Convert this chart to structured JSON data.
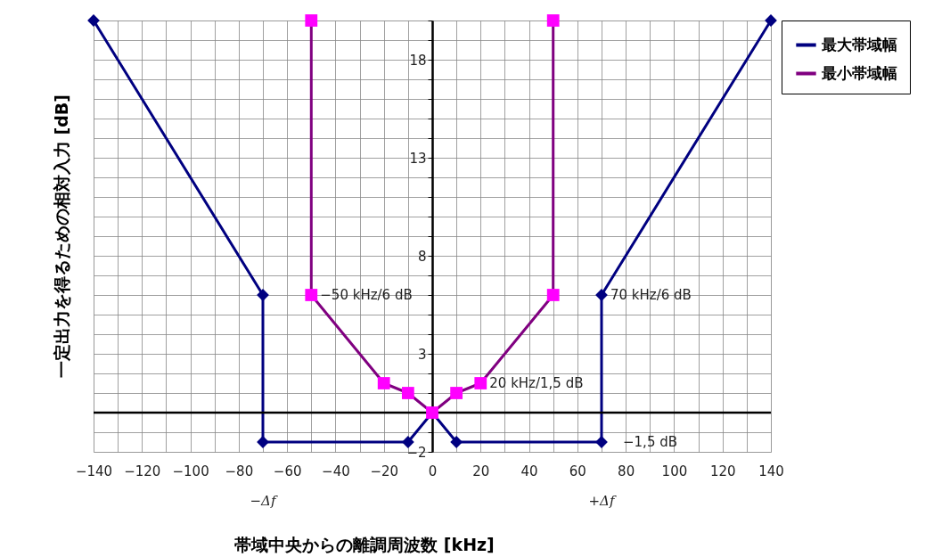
{
  "chart_data": {
    "type": "line",
    "xlabel": "帯域中央からの離調周波数 [kHz]",
    "ylabel": "一定出力を得るための相対入力 [dB]",
    "xlim": [
      -140,
      140
    ],
    "xticks": [
      -140,
      {
        "value": -130,
        "label": null
      },
      -120,
      {
        "value": -110,
        "label": null
      },
      -100,
      {
        "value": -90,
        "label": null
      },
      -80,
      {
        "value": -70,
        "label": null
      },
      -60,
      {
        "value": -50,
        "label": null
      },
      -40,
      {
        "value": -30,
        "label": null
      },
      -20,
      {
        "value": -10,
        "label": null
      },
      0,
      {
        "value": 10,
        "label": null
      },
      20,
      {
        "value": 30,
        "label": null
      },
      40,
      {
        "value": 50,
        "label": null
      },
      60,
      {
        "value": 70,
        "label": null
      },
      80,
      {
        "value": 90,
        "label": null
      },
      100,
      {
        "value": 110,
        "label": null
      },
      120,
      {
        "value": 130,
        "label": null
      },
      140
    ],
    "ylim": [
      -2,
      20
    ],
    "yticks": [
      -2,
      {
        "value": -1,
        "label": null
      },
      {
        "value": 0,
        "label": null
      },
      {
        "value": 1,
        "label": null
      },
      {
        "value": 2,
        "label": null
      },
      3,
      {
        "value": 4,
        "label": null
      },
      {
        "value": 5,
        "label": null
      },
      {
        "value": 6,
        "label": null
      },
      {
        "value": 7,
        "label": null
      },
      8,
      {
        "value": 9,
        "label": null
      },
      {
        "value": 10,
        "label": null
      },
      {
        "value": 11,
        "label": null
      },
      {
        "value": 12,
        "label": null
      },
      13,
      {
        "value": 14,
        "label": null
      },
      {
        "value": 15,
        "label": null
      },
      {
        "value": 16,
        "label": null
      },
      {
        "value": 17,
        "label": null
      },
      18,
      {
        "value": 19,
        "label": null
      },
      {
        "value": 20,
        "label": null
      }
    ],
    "grid": true,
    "legend": "right",
    "series": [
      {
        "name": "最大帯域幅",
        "color": "#000080",
        "marker": "diamond",
        "x": [
          -140,
          -70,
          -70,
          -10,
          0,
          10,
          70,
          70,
          140
        ],
        "values": [
          20,
          6,
          -1.5,
          -1.5,
          0,
          -1.5,
          -1.5,
          6,
          20
        ]
      },
      {
        "name": "最小帯域幅",
        "color": "#800080",
        "colors": [
          "#ff00ff",
          "#ff00ff",
          "#ff00ff",
          "#ff00ff",
          "#ff00ff",
          "#ff00ff",
          "#ff00ff",
          "#ff00ff",
          "#ff00ff"
        ],
        "marker": "square",
        "x": [
          -50,
          -50,
          -20,
          -10,
          0,
          10,
          20,
          50,
          50
        ],
        "values": [
          20,
          6,
          1.5,
          1,
          0,
          1,
          1.5,
          6,
          20
        ]
      }
    ],
    "ref_lines": [
      {
        "axis": "y",
        "value": 0,
        "color": "#000000"
      }
    ],
    "annotations": [
      {
        "text": "−50 kHz/6 dB",
        "x": -50,
        "y": 6
      },
      {
        "text": "70 kHz/6 dB",
        "x": 70,
        "y": 6
      },
      {
        "text": "20 kHz/1,5 dB",
        "x": 20,
        "y": 1.5
      },
      {
        "text": "−1,5 dB",
        "x": 70,
        "y": -1.5
      },
      "−Δf",
      "+Δf"
    ]
  }
}
